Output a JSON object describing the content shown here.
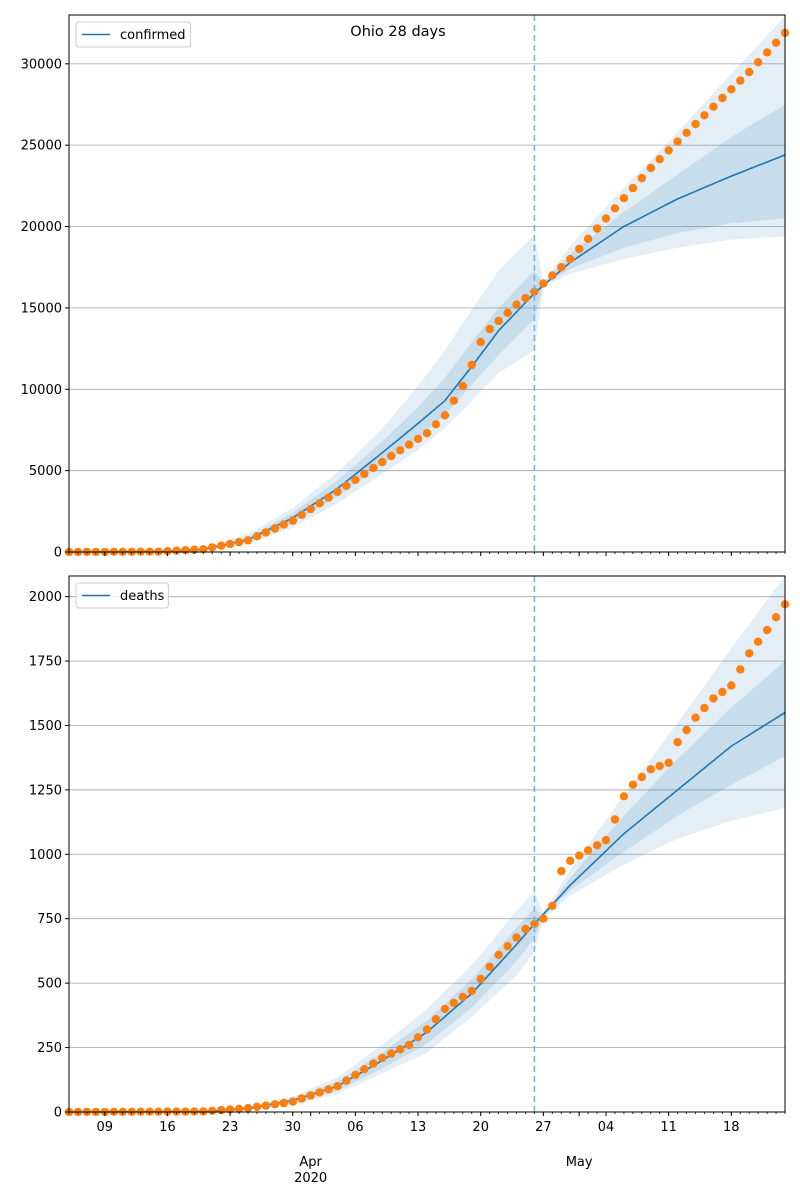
{
  "title": "Ohio 28 days",
  "colors": {
    "model": "#1f77b4",
    "observed": "#ff7f0e",
    "band": "#1f77b4",
    "grid": "#b0b0b0",
    "forecast_divider": "#7fb2d8"
  },
  "x_axis": {
    "start_date": "2020-03-05",
    "end_date": "2020-05-24",
    "forecast_start": "2020-04-26",
    "ticks": [
      {
        "date": "2020-03-09",
        "label": "09"
      },
      {
        "date": "2020-03-16",
        "label": "16"
      },
      {
        "date": "2020-03-23",
        "label": "23"
      },
      {
        "date": "2020-03-30",
        "label": "30"
      },
      {
        "date": "2020-04-06",
        "label": "06"
      },
      {
        "date": "2020-04-13",
        "label": "13"
      },
      {
        "date": "2020-04-20",
        "label": "20"
      },
      {
        "date": "2020-04-27",
        "label": "27"
      },
      {
        "date": "2020-05-04",
        "label": "04"
      },
      {
        "date": "2020-05-11",
        "label": "11"
      },
      {
        "date": "2020-05-18",
        "label": "18"
      }
    ],
    "month_labels": [
      {
        "date": "2020-04-01",
        "label": "Apr",
        "year": "2020"
      },
      {
        "date": "2020-05-01",
        "label": "May",
        "year": ""
      }
    ]
  },
  "chart_data": [
    {
      "type": "line",
      "name": "confirmed",
      "legend": "confirmed",
      "legend_position": "top-left",
      "grid": "horizontal",
      "ylim": [
        0,
        33000
      ],
      "yticks": [
        0,
        5000,
        10000,
        15000,
        20000,
        25000,
        30000
      ],
      "observed_knots": [
        [
          "2020-03-05",
          0
        ],
        [
          "2020-03-15",
          20
        ],
        [
          "2020-03-20",
          170
        ],
        [
          "2020-03-25",
          720
        ],
        [
          "2020-03-30",
          1930
        ],
        [
          "2020-04-04",
          3700
        ],
        [
          "2020-04-10",
          5900
        ],
        [
          "2020-04-14",
          7300
        ],
        [
          "2020-04-16",
          8400
        ],
        [
          "2020-04-18",
          10200
        ],
        [
          "2020-04-19",
          11500
        ],
        [
          "2020-04-20",
          12900
        ],
        [
          "2020-04-21",
          13700
        ],
        [
          "2020-04-22",
          14200
        ],
        [
          "2020-04-24",
          15200
        ],
        [
          "2020-04-26",
          16000
        ],
        [
          "2020-04-30",
          18000
        ],
        [
          "2020-05-04",
          20500
        ],
        [
          "2020-05-09",
          23600
        ],
        [
          "2020-05-14",
          26300
        ],
        [
          "2020-05-20",
          29500
        ],
        [
          "2020-05-24",
          31900
        ]
      ],
      "model_knots": [
        [
          "2020-03-05",
          0
        ],
        [
          "2020-03-15",
          20
        ],
        [
          "2020-03-20",
          160
        ],
        [
          "2020-03-25",
          760
        ],
        [
          "2020-03-30",
          2100
        ],
        [
          "2020-04-04",
          3900
        ],
        [
          "2020-04-09",
          6100
        ],
        [
          "2020-04-13",
          7900
        ],
        [
          "2020-04-16",
          9300
        ],
        [
          "2020-04-19",
          11400
        ],
        [
          "2020-04-22",
          13600
        ],
        [
          "2020-04-26",
          15900
        ],
        [
          "2020-04-30",
          17800
        ],
        [
          "2020-05-06",
          20000
        ],
        [
          "2020-05-12",
          21700
        ],
        [
          "2020-05-18",
          23100
        ],
        [
          "2020-05-24",
          24400
        ]
      ],
      "band_outer_upper_knots": [
        [
          "2020-03-05",
          0
        ],
        [
          "2020-03-20",
          260
        ],
        [
          "2020-03-25",
          1100
        ],
        [
          "2020-03-30",
          2700
        ],
        [
          "2020-04-04",
          4900
        ],
        [
          "2020-04-09",
          7600
        ],
        [
          "2020-04-13",
          10200
        ],
        [
          "2020-04-16",
          12400
        ],
        [
          "2020-04-19",
          14900
        ],
        [
          "2020-04-22",
          17300
        ],
        [
          "2020-04-26",
          19500
        ],
        [
          "2020-04-27",
          16600
        ],
        [
          "2020-04-30",
          18800
        ],
        [
          "2020-05-06",
          22400
        ],
        [
          "2020-05-12",
          25800
        ],
        [
          "2020-05-18",
          29400
        ],
        [
          "2020-05-24",
          32900
        ]
      ],
      "band_outer_lower_knots": [
        [
          "2020-03-05",
          0
        ],
        [
          "2020-03-20",
          100
        ],
        [
          "2020-03-25",
          480
        ],
        [
          "2020-03-30",
          1500
        ],
        [
          "2020-04-04",
          3000
        ],
        [
          "2020-04-09",
          4800
        ],
        [
          "2020-04-13",
          6300
        ],
        [
          "2020-04-16",
          7600
        ],
        [
          "2020-04-19",
          9300
        ],
        [
          "2020-04-22",
          11000
        ],
        [
          "2020-04-26",
          12400
        ],
        [
          "2020-04-27",
          16300
        ],
        [
          "2020-04-30",
          17100
        ],
        [
          "2020-05-06",
          18000
        ],
        [
          "2020-05-12",
          18700
        ],
        [
          "2020-05-18",
          19200
        ],
        [
          "2020-05-24",
          19400
        ]
      ],
      "band_inner_upper_knots": [
        [
          "2020-03-05",
          0
        ],
        [
          "2020-03-20",
          210
        ],
        [
          "2020-03-25",
          920
        ],
        [
          "2020-03-30",
          2400
        ],
        [
          "2020-04-04",
          4400
        ],
        [
          "2020-04-09",
          6800
        ],
        [
          "2020-04-13",
          8900
        ],
        [
          "2020-04-16",
          10700
        ],
        [
          "2020-04-19",
          12900
        ],
        [
          "2020-04-22",
          15000
        ],
        [
          "2020-04-26",
          17300
        ],
        [
          "2020-04-27",
          16500
        ],
        [
          "2020-04-30",
          18300
        ],
        [
          "2020-05-06",
          20900
        ],
        [
          "2020-05-12",
          23200
        ],
        [
          "2020-05-18",
          25500
        ],
        [
          "2020-05-24",
          27500
        ]
      ],
      "band_inner_lower_knots": [
        [
          "2020-03-05",
          0
        ],
        [
          "2020-03-20",
          120
        ],
        [
          "2020-03-25",
          600
        ],
        [
          "2020-03-30",
          1800
        ],
        [
          "2020-04-04",
          3400
        ],
        [
          "2020-04-09",
          5400
        ],
        [
          "2020-04-13",
          7000
        ],
        [
          "2020-04-16",
          8400
        ],
        [
          "2020-04-19",
          10300
        ],
        [
          "2020-04-22",
          12100
        ],
        [
          "2020-04-26",
          14300
        ],
        [
          "2020-04-27",
          16400
        ],
        [
          "2020-04-30",
          17400
        ],
        [
          "2020-05-06",
          18700
        ],
        [
          "2020-05-12",
          19600
        ],
        [
          "2020-05-18",
          20200
        ],
        [
          "2020-05-24",
          20500
        ]
      ]
    },
    {
      "type": "line",
      "name": "deaths",
      "legend": "deaths",
      "legend_position": "top-left",
      "grid": "horizontal",
      "ylim": [
        0,
        2080
      ],
      "yticks": [
        0,
        250,
        500,
        750,
        1000,
        1250,
        1500,
        1750,
        2000
      ],
      "observed_knots": [
        [
          "2020-03-05",
          0
        ],
        [
          "2020-03-20",
          2
        ],
        [
          "2020-03-25",
          15
        ],
        [
          "2020-03-30",
          40
        ],
        [
          "2020-04-04",
          100
        ],
        [
          "2020-04-09",
          210
        ],
        [
          "2020-04-12",
          260
        ],
        [
          "2020-04-14",
          320
        ],
        [
          "2020-04-16",
          400
        ],
        [
          "2020-04-19",
          470
        ],
        [
          "2020-04-22",
          610
        ],
        [
          "2020-04-25",
          710
        ],
        [
          "2020-04-27",
          750
        ],
        [
          "2020-04-28",
          800
        ],
        [
          "2020-04-29",
          935
        ],
        [
          "2020-04-30",
          975
        ],
        [
          "2020-05-04",
          1055
        ],
        [
          "2020-05-05",
          1135
        ],
        [
          "2020-05-06",
          1225
        ],
        [
          "2020-05-07",
          1270
        ],
        [
          "2020-05-09",
          1330
        ],
        [
          "2020-05-11",
          1355
        ],
        [
          "2020-05-12",
          1435
        ],
        [
          "2020-05-14",
          1530
        ],
        [
          "2020-05-16",
          1605
        ],
        [
          "2020-05-18",
          1655
        ],
        [
          "2020-05-20",
          1780
        ],
        [
          "2020-05-22",
          1870
        ],
        [
          "2020-05-24",
          1970
        ]
      ],
      "model_knots": [
        [
          "2020-03-05",
          0
        ],
        [
          "2020-03-20",
          2
        ],
        [
          "2020-03-25",
          14
        ],
        [
          "2020-03-30",
          45
        ],
        [
          "2020-04-04",
          100
        ],
        [
          "2020-04-09",
          200
        ],
        [
          "2020-04-14",
          310
        ],
        [
          "2020-04-19",
          460
        ],
        [
          "2020-04-24",
          650
        ],
        [
          "2020-04-26",
          730
        ],
        [
          "2020-04-30",
          880
        ],
        [
          "2020-05-06",
          1080
        ],
        [
          "2020-05-12",
          1250
        ],
        [
          "2020-05-18",
          1420
        ],
        [
          "2020-05-24",
          1550
        ]
      ],
      "band_outer_upper_knots": [
        [
          "2020-03-05",
          0
        ],
        [
          "2020-03-20",
          3
        ],
        [
          "2020-03-25",
          22
        ],
        [
          "2020-03-30",
          60
        ],
        [
          "2020-04-04",
          135
        ],
        [
          "2020-04-09",
          260
        ],
        [
          "2020-04-14",
          400
        ],
        [
          "2020-04-19",
          570
        ],
        [
          "2020-04-24",
          780
        ],
        [
          "2020-04-26",
          860
        ],
        [
          "2020-04-27",
          770
        ],
        [
          "2020-04-30",
          940
        ],
        [
          "2020-05-06",
          1230
        ],
        [
          "2020-05-12",
          1510
        ],
        [
          "2020-05-18",
          1800
        ],
        [
          "2020-05-24",
          2080
        ]
      ],
      "band_outer_lower_knots": [
        [
          "2020-03-05",
          0
        ],
        [
          "2020-03-20",
          1
        ],
        [
          "2020-03-25",
          8
        ],
        [
          "2020-03-30",
          30
        ],
        [
          "2020-04-04",
          70
        ],
        [
          "2020-04-09",
          150
        ],
        [
          "2020-04-14",
          230
        ],
        [
          "2020-04-19",
          370
        ],
        [
          "2020-04-24",
          530
        ],
        [
          "2020-04-26",
          620
        ],
        [
          "2020-04-27",
          750
        ],
        [
          "2020-04-30",
          840
        ],
        [
          "2020-05-06",
          960
        ],
        [
          "2020-05-12",
          1060
        ],
        [
          "2020-05-18",
          1130
        ],
        [
          "2020-05-24",
          1180
        ]
      ],
      "band_inner_upper_knots": [
        [
          "2020-03-05",
          0
        ],
        [
          "2020-03-20",
          2
        ],
        [
          "2020-03-25",
          18
        ],
        [
          "2020-03-30",
          52
        ],
        [
          "2020-04-04",
          118
        ],
        [
          "2020-04-09",
          230
        ],
        [
          "2020-04-14",
          355
        ],
        [
          "2020-04-19",
          515
        ],
        [
          "2020-04-24",
          715
        ],
        [
          "2020-04-26",
          790
        ],
        [
          "2020-04-27",
          760
        ],
        [
          "2020-04-30",
          910
        ],
        [
          "2020-05-06",
          1150
        ],
        [
          "2020-05-12",
          1370
        ],
        [
          "2020-05-18",
          1570
        ],
        [
          "2020-05-24",
          1750
        ]
      ],
      "band_inner_lower_knots": [
        [
          "2020-03-05",
          0
        ],
        [
          "2020-03-20",
          1
        ],
        [
          "2020-03-25",
          10
        ],
        [
          "2020-03-30",
          36
        ],
        [
          "2020-04-04",
          82
        ],
        [
          "2020-04-09",
          170
        ],
        [
          "2020-04-14",
          265
        ],
        [
          "2020-04-19",
          405
        ],
        [
          "2020-04-24",
          585
        ],
        [
          "2020-04-26",
          675
        ],
        [
          "2020-04-27",
          755
        ],
        [
          "2020-04-30",
          860
        ],
        [
          "2020-05-06",
          1010
        ],
        [
          "2020-05-12",
          1150
        ],
        [
          "2020-05-18",
          1270
        ],
        [
          "2020-05-24",
          1380
        ]
      ]
    }
  ]
}
